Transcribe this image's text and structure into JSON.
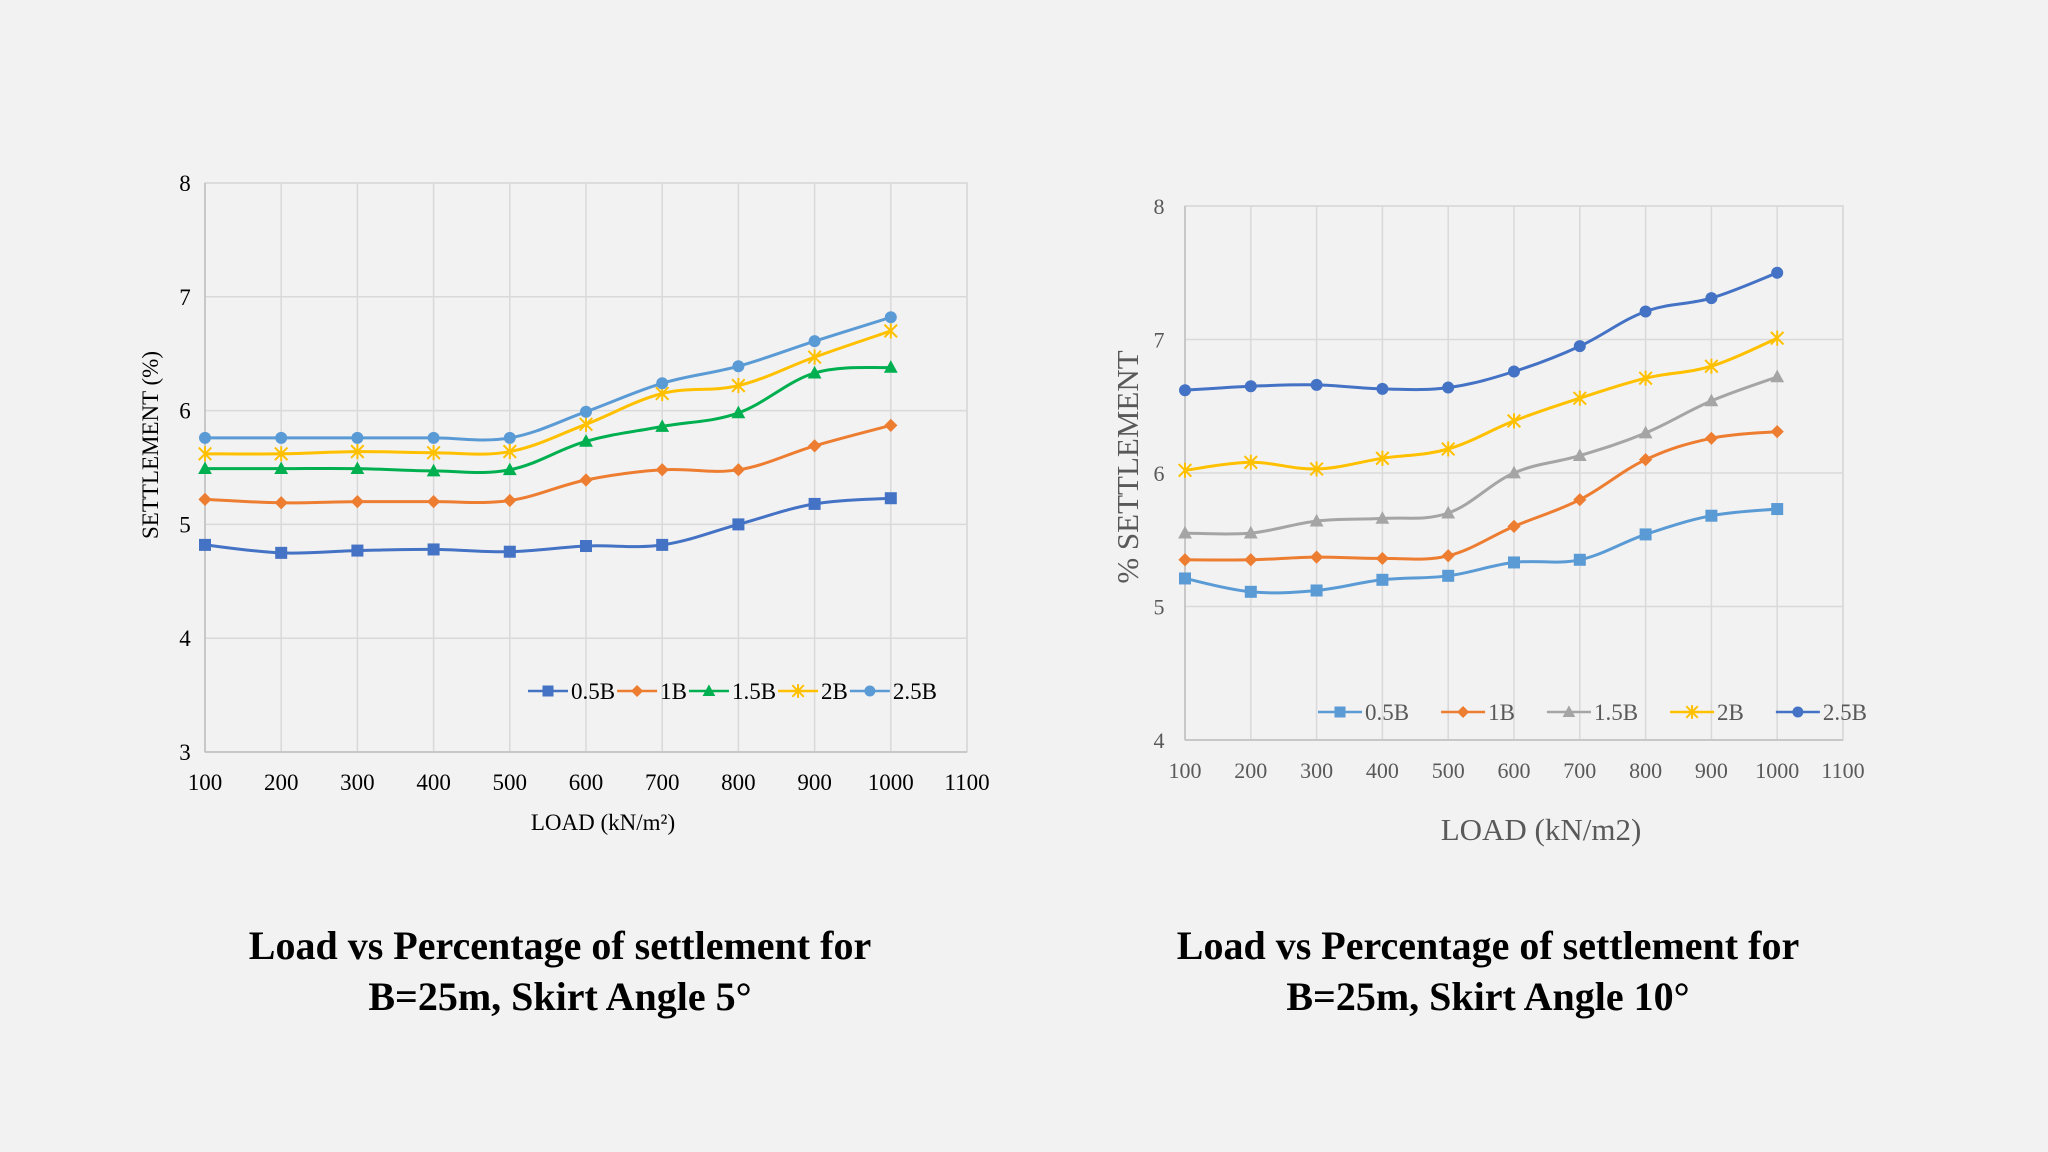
{
  "chart_data": [
    {
      "type": "line",
      "xlabel": "LOAD (kN/m²)",
      "ylabel": "SETTLEMENT (%)",
      "xlim": [
        100,
        1100
      ],
      "ylim": [
        3,
        8
      ],
      "xticks": [
        100,
        200,
        300,
        400,
        500,
        600,
        700,
        800,
        900,
        1000,
        1100
      ],
      "yticks": [
        3,
        4,
        5,
        6,
        7,
        8
      ],
      "grid": true,
      "legend_position": "bottom-right",
      "x": [
        100,
        200,
        300,
        400,
        500,
        600,
        700,
        800,
        900,
        1000
      ],
      "series": [
        {
          "name": "0.5B",
          "color": "#4472c4",
          "marker": "square",
          "values": [
            4.82,
            4.75,
            4.77,
            4.78,
            4.76,
            4.81,
            4.82,
            5.0,
            5.18,
            5.23
          ]
        },
        {
          "name": "1B",
          "color": "#ed7d31",
          "marker": "diamond",
          "values": [
            5.22,
            5.19,
            5.2,
            5.2,
            5.21,
            5.39,
            5.48,
            5.48,
            5.69,
            5.87
          ]
        },
        {
          "name": "1.5B",
          "color": "#00b050",
          "marker": "triangle",
          "values": [
            5.49,
            5.49,
            5.49,
            5.47,
            5.48,
            5.73,
            5.86,
            5.98,
            6.33,
            6.38
          ]
        },
        {
          "name": "2B",
          "color": "#ffc000",
          "marker": "star",
          "values": [
            5.62,
            5.62,
            5.64,
            5.63,
            5.64,
            5.88,
            6.15,
            6.22,
            6.47,
            6.7
          ]
        },
        {
          "name": "2.5B",
          "color": "#5b9bd5",
          "marker": "circle",
          "values": [
            5.76,
            5.76,
            5.76,
            5.76,
            5.76,
            5.99,
            6.24,
            6.39,
            6.61,
            6.82
          ]
        }
      ]
    },
    {
      "type": "line",
      "xlabel": "LOAD (kN/m2)",
      "ylabel": "% SETTLEMENT",
      "xlim": [
        100,
        1100
      ],
      "ylim": [
        4,
        8
      ],
      "xticks": [
        100,
        200,
        300,
        400,
        500,
        600,
        700,
        800,
        900,
        1000,
        1100
      ],
      "yticks": [
        4,
        5,
        6,
        7,
        8
      ],
      "grid": true,
      "legend_position": "bottom",
      "x": [
        100,
        200,
        300,
        400,
        500,
        600,
        700,
        800,
        900,
        1000
      ],
      "series": [
        {
          "name": "0.5B",
          "color": "#5b9bd5",
          "marker": "square",
          "values": [
            5.21,
            5.11,
            5.12,
            5.2,
            5.23,
            5.33,
            5.35,
            5.54,
            5.68,
            5.73
          ]
        },
        {
          "name": "1B",
          "color": "#ed7d31",
          "marker": "diamond",
          "values": [
            5.35,
            5.35,
            5.37,
            5.36,
            5.38,
            5.6,
            5.8,
            6.1,
            6.26,
            6.31
          ]
        },
        {
          "name": "1.5B",
          "color": "#a5a5a5",
          "marker": "triangle",
          "values": [
            5.55,
            5.55,
            5.64,
            5.66,
            5.7,
            6.0,
            6.13,
            6.3,
            6.54,
            6.72
          ]
        },
        {
          "name": "2B",
          "color": "#ffc000",
          "marker": "star",
          "values": [
            6.02,
            6.08,
            6.03,
            6.11,
            6.18,
            6.39,
            6.56,
            6.71,
            6.8,
            7.01
          ]
        },
        {
          "name": "2.5B",
          "color": "#4472c4",
          "marker": "circle",
          "values": [
            6.62,
            6.65,
            6.66,
            6.63,
            6.64,
            6.76,
            6.95,
            7.21,
            7.31,
            7.5
          ]
        }
      ]
    }
  ],
  "captions": {
    "left": {
      "line1": "Load vs Percentage of settlement for",
      "line2": "B=25m, Skirt Angle 5°"
    },
    "right": {
      "line1": "Load vs Percentage of settlement for",
      "line2": "B=25m, Skirt Angle 10°"
    }
  }
}
